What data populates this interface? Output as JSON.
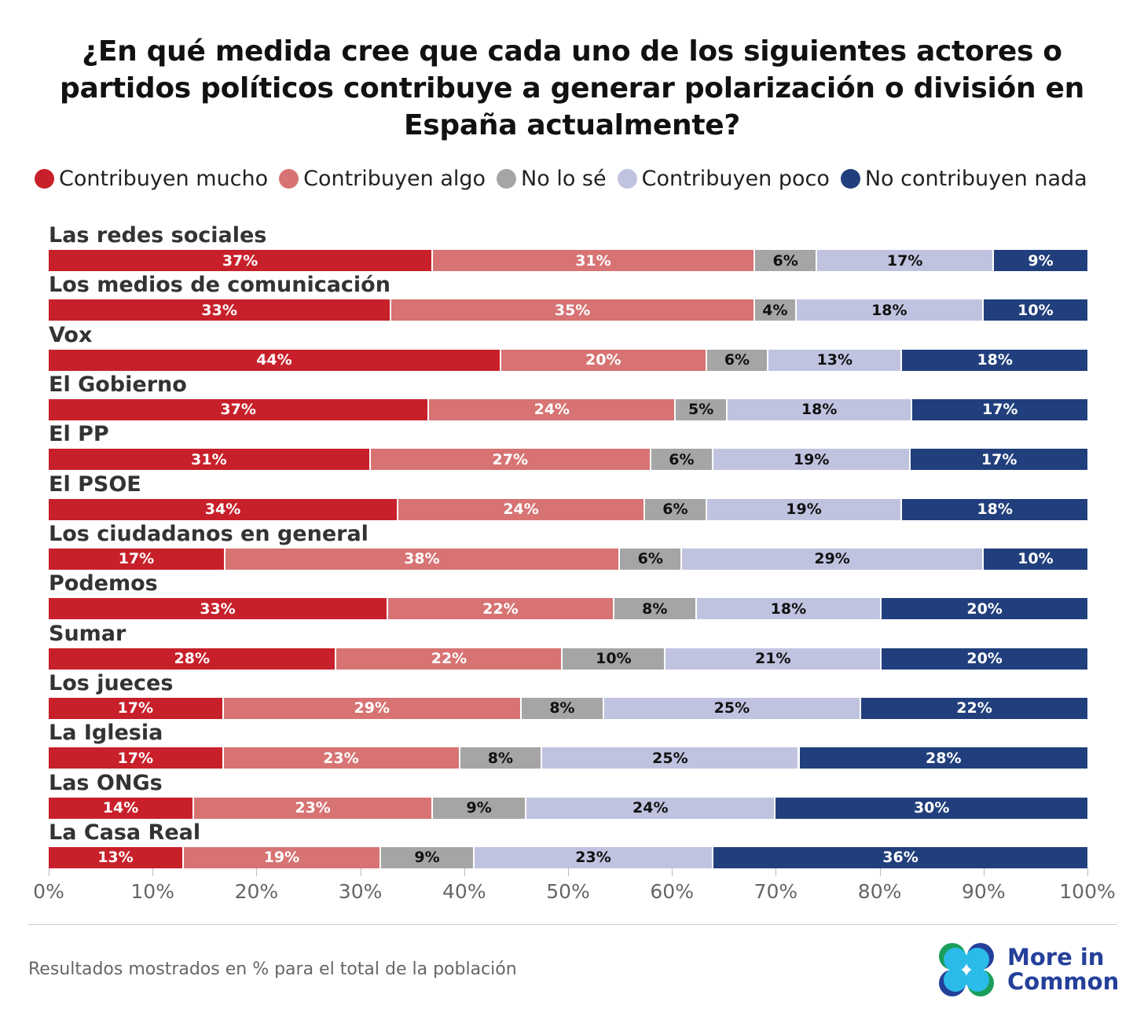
{
  "chart_data": {
    "type": "bar",
    "orientation": "horizontal",
    "stacked": true,
    "title": "¿En qué medida cree que cada uno de los siguientes actores o partidos políticos contribuye a generar polarización o división en España actualmente?",
    "categories": [
      "Las redes sociales",
      "Los medios de comunicación",
      "Vox",
      "El Gobierno",
      "El PP",
      "El PSOE",
      "Los ciudadanos en general",
      "Podemos",
      "Sumar",
      "Los jueces",
      "La Iglesia",
      "Las ONGs",
      "La Casa Real"
    ],
    "series": [
      {
        "name": "Contribuyen mucho",
        "color": "#c8202a",
        "values": [
          37,
          33,
          44,
          37,
          31,
          34,
          17,
          33,
          28,
          17,
          17,
          14,
          13
        ]
      },
      {
        "name": "Contribuyen algo",
        "color": "#d77373",
        "values": [
          31,
          35,
          20,
          24,
          27,
          24,
          38,
          22,
          22,
          29,
          23,
          23,
          19
        ]
      },
      {
        "name": "No lo sé",
        "color": "#a5a5a5",
        "values": [
          6,
          4,
          6,
          5,
          6,
          6,
          6,
          8,
          10,
          8,
          8,
          9,
          9
        ]
      },
      {
        "name": "Contribuyen poco",
        "color": "#c0c3e0",
        "values": [
          17,
          18,
          13,
          18,
          19,
          19,
          29,
          18,
          21,
          25,
          25,
          24,
          23
        ]
      },
      {
        "name": "No contribuyen nada",
        "color": "#213f7c",
        "values": [
          9,
          10,
          18,
          17,
          17,
          18,
          10,
          20,
          20,
          22,
          28,
          30,
          36
        ]
      }
    ],
    "xlim": [
      0,
      100
    ],
    "xticks": [
      "0%",
      "10%",
      "20%",
      "30%",
      "40%",
      "50%",
      "60%",
      "70%",
      "80%",
      "90%",
      "100%"
    ],
    "legend_position": "top",
    "grid": false
  },
  "footnote": "Resultados mostrados en % para el total de la población",
  "logo": {
    "line1": "More in",
    "line2": "Common"
  }
}
